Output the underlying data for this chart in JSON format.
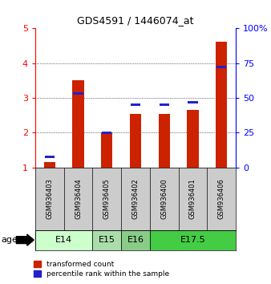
{
  "title": "GDS4591 / 1446074_at",
  "samples": [
    "GSM936403",
    "GSM936404",
    "GSM936405",
    "GSM936402",
    "GSM936400",
    "GSM936401",
    "GSM936406"
  ],
  "transformed_count": [
    1.15,
    3.5,
    2.0,
    2.55,
    2.55,
    2.65,
    4.62
  ],
  "percentile_rank": [
    7.5,
    53,
    25,
    45,
    45,
    47,
    72
  ],
  "age_groups": [
    {
      "label": "E14",
      "start": 0,
      "end": 2,
      "color": "#ccffcc"
    },
    {
      "label": "E15",
      "start": 2,
      "end": 3,
      "color": "#aaddaa"
    },
    {
      "label": "E16",
      "start": 3,
      "end": 4,
      "color": "#88cc88"
    },
    {
      "label": "E17.5",
      "start": 4,
      "end": 7,
      "color": "#44cc44"
    }
  ],
  "ylim_left": [
    1,
    5
  ],
  "ylim_right": [
    0,
    100
  ],
  "yticks_left": [
    1,
    2,
    3,
    4,
    5
  ],
  "yticks_right": [
    0,
    25,
    50,
    75,
    100
  ],
  "bar_color_red": "#cc2200",
  "bar_color_blue": "#2222cc",
  "bg_color_sample": "#cccccc",
  "bar_width": 0.4,
  "blue_bar_height": 0.07
}
